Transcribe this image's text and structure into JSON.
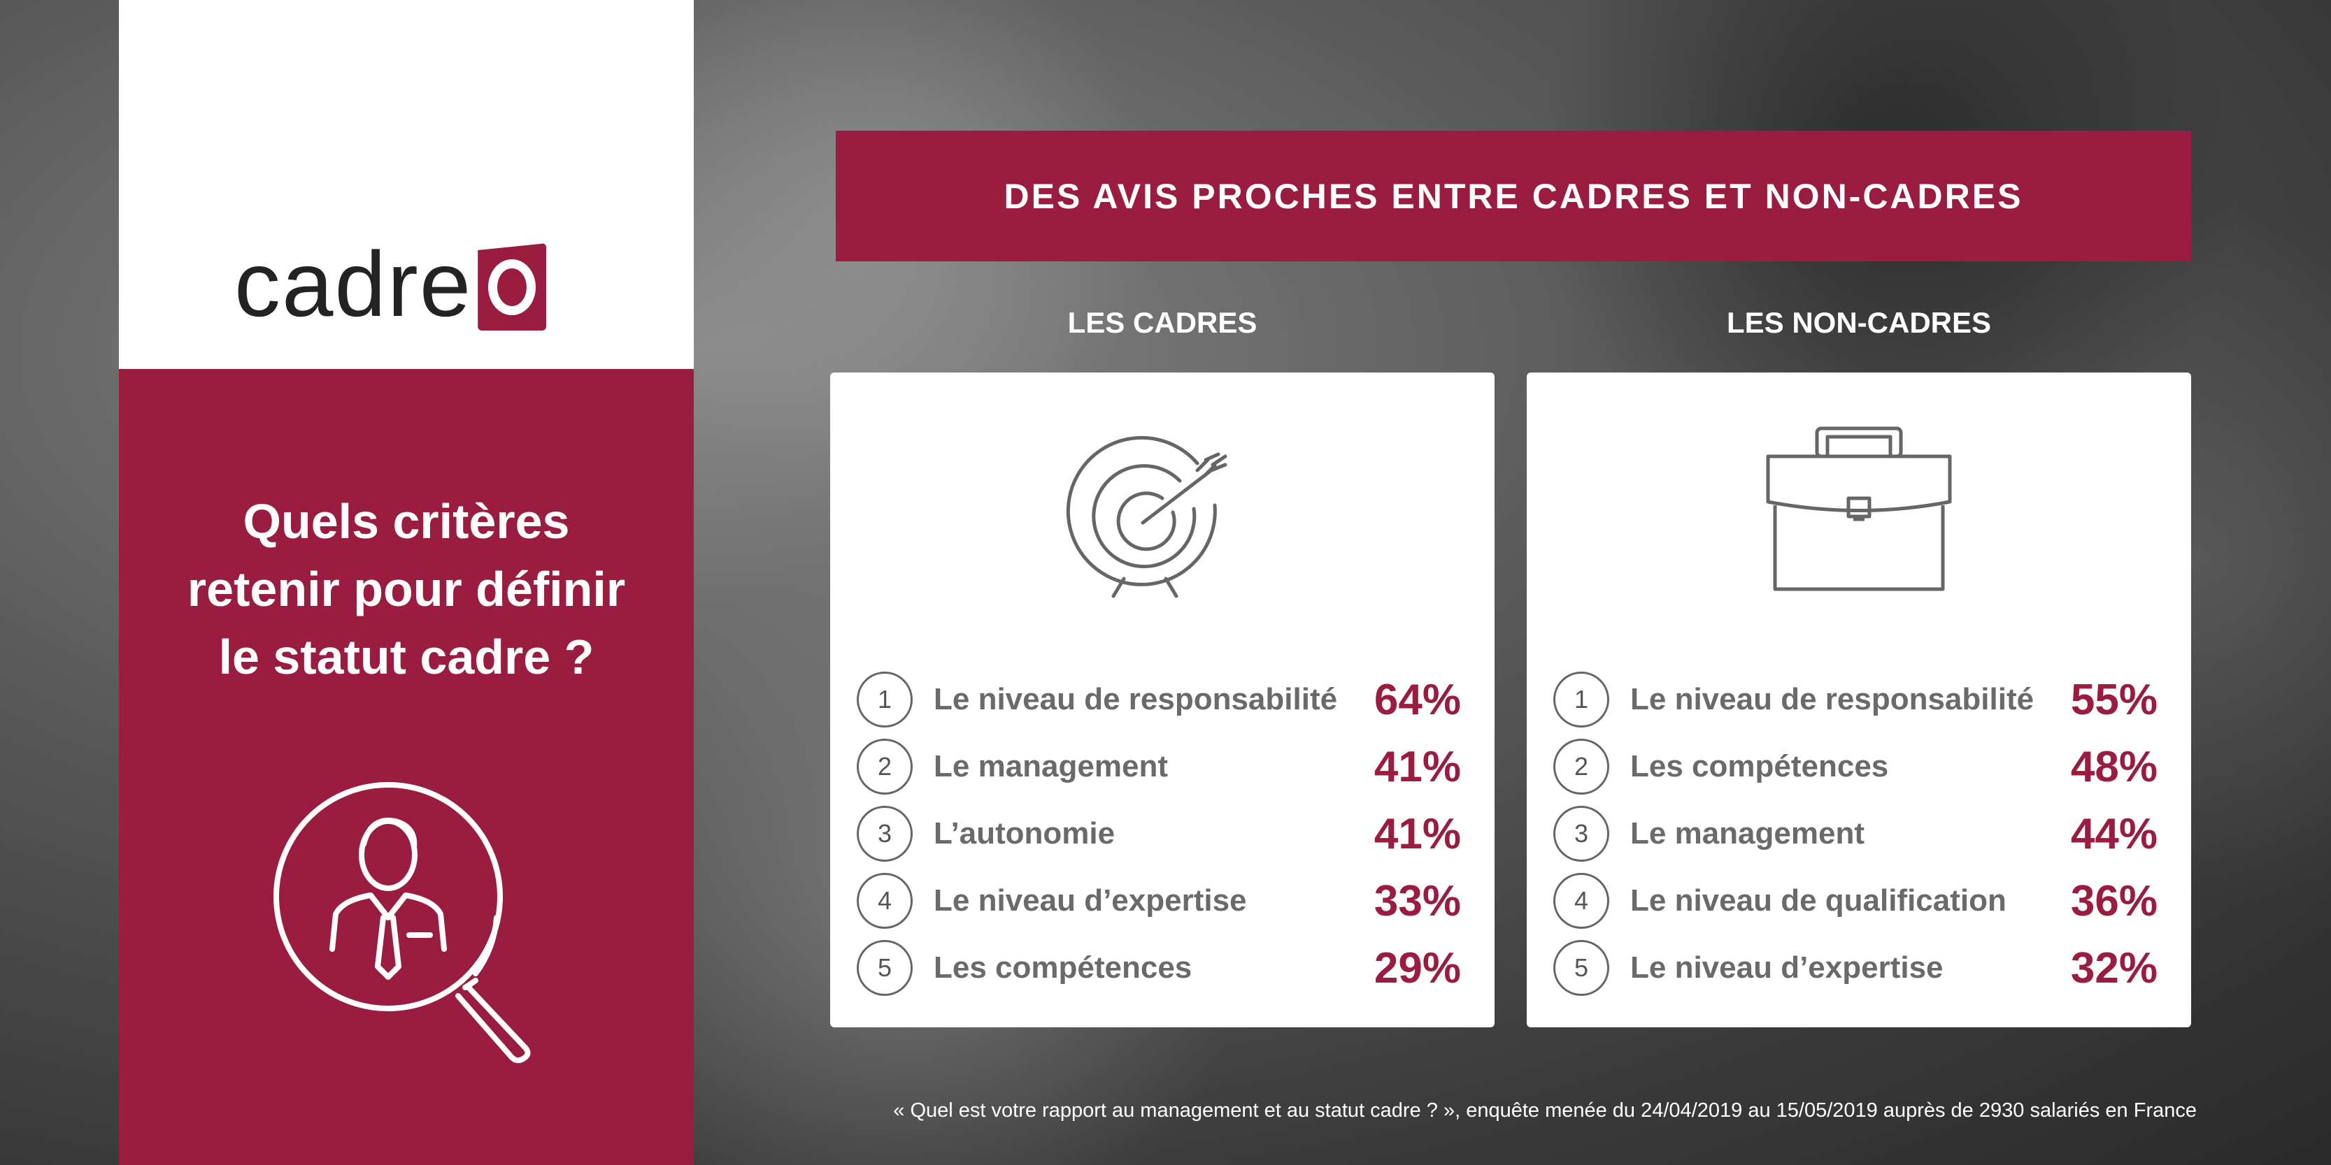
{
  "logo": {
    "text": "cadreo"
  },
  "sidebar": {
    "title_lines": [
      "Quels critères",
      "retenir pour définir",
      "le statut cadre ?"
    ]
  },
  "banner": {
    "title": "DES AVIS PROCHES ENTRE CADRES ET NON-CADRES"
  },
  "columns": [
    {
      "title": "LES CADRES",
      "icon": "target-icon",
      "items": [
        {
          "rank": "1",
          "label": "Le niveau de responsabilité",
          "value": "64%"
        },
        {
          "rank": "2",
          "label": "Le management",
          "value": "41%"
        },
        {
          "rank": "3",
          "label": "L’autonomie",
          "value": "41%"
        },
        {
          "rank": "4",
          "label": "Le niveau d’expertise",
          "value": "33%"
        },
        {
          "rank": "5",
          "label": "Les compétences",
          "value": "29%"
        }
      ]
    },
    {
      "title": "LES NON-CADRES",
      "icon": "briefcase-icon",
      "items": [
        {
          "rank": "1",
          "label": "Le niveau de responsabilité",
          "value": "55%"
        },
        {
          "rank": "2",
          "label": "Les compétences",
          "value": "48%"
        },
        {
          "rank": "3",
          "label": "Le management",
          "value": "44%"
        },
        {
          "rank": "4",
          "label": "Le niveau de qualification",
          "value": "36%"
        },
        {
          "rank": "5",
          "label": "Le niveau d’expertise",
          "value": "32%"
        }
      ]
    }
  ],
  "footer": {
    "note": "« Quel est votre rapport au management et au statut cadre ? », enquête menée du 24/04/2019 au 15/05/2019 auprès de 2930 salariés en France"
  },
  "colors": {
    "brand": "#9a1d41",
    "text_gray": "#6a6a6a"
  }
}
